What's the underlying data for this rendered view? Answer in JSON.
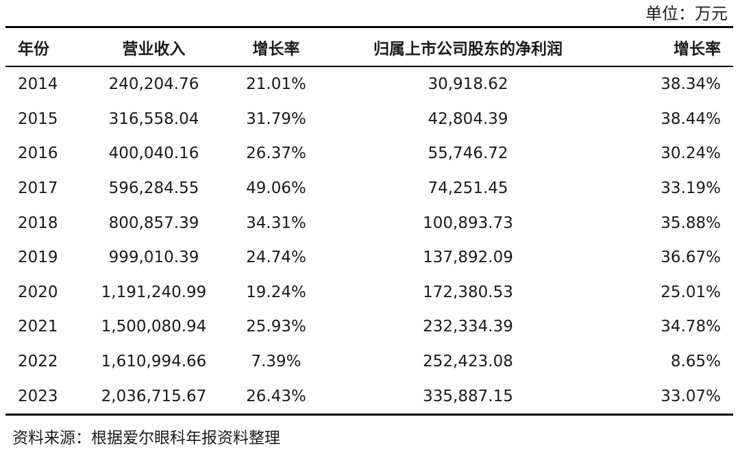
{
  "unit_label": "单位：万元",
  "headers": {
    "year": "年份",
    "revenue": "营业收入",
    "revenue_growth": "增长率",
    "net_profit": "归属上市公司股东的净利润",
    "net_profit_growth": "增长率"
  },
  "rows": [
    {
      "year": "2014",
      "revenue": "240,204.76",
      "revenue_growth": "21.01%",
      "net_profit": "30,918.62",
      "net_profit_growth": "38.34%"
    },
    {
      "year": "2015",
      "revenue": "316,558.04",
      "revenue_growth": "31.79%",
      "net_profit": "42,804.39",
      "net_profit_growth": "38.44%"
    },
    {
      "year": "2016",
      "revenue": "400,040.16",
      "revenue_growth": "26.37%",
      "net_profit": "55,746.72",
      "net_profit_growth": "30.24%"
    },
    {
      "year": "2017",
      "revenue": "596,284.55",
      "revenue_growth": "49.06%",
      "net_profit": "74,251.45",
      "net_profit_growth": "33.19%"
    },
    {
      "year": "2018",
      "revenue": "800,857.39",
      "revenue_growth": "34.31%",
      "net_profit": "100,893.73",
      "net_profit_growth": "35.88%"
    },
    {
      "year": "2019",
      "revenue": "999,010.39",
      "revenue_growth": "24.74%",
      "net_profit": "137,892.09",
      "net_profit_growth": "36.67%"
    },
    {
      "year": "2020",
      "revenue": "1,191,240.99",
      "revenue_growth": "19.24%",
      "net_profit": "172,380.53",
      "net_profit_growth": "25.01%"
    },
    {
      "year": "2021",
      "revenue": "1,500,080.94",
      "revenue_growth": "25.93%",
      "net_profit": "232,334.39",
      "net_profit_growth": "34.78%"
    },
    {
      "year": "2022",
      "revenue": "1,610,994.66",
      "revenue_growth": "7.39%",
      "net_profit": "252,423.08",
      "net_profit_growth": "8.65%"
    },
    {
      "year": "2023",
      "revenue": "2,036,715.67",
      "revenue_growth": "26.43%",
      "net_profit": "335,887.15",
      "net_profit_growth": "33.07%"
    }
  ],
  "source_note": "资料来源：根据爱尔眼科年报资料整理"
}
